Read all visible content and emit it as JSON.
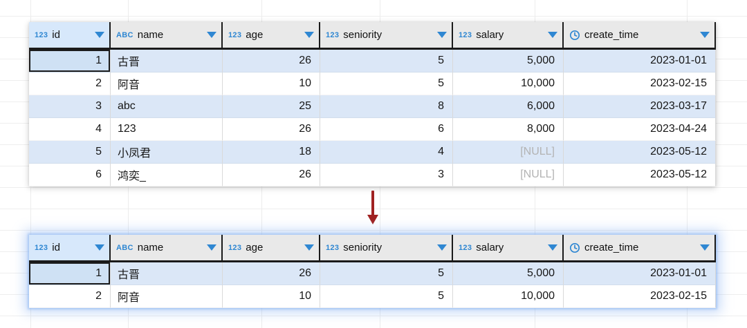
{
  "columns": [
    {
      "key": "id",
      "label": "id",
      "type": "123",
      "icon": "number-type-icon",
      "align": "right"
    },
    {
      "key": "name",
      "label": "name",
      "type": "ABC",
      "icon": "text-type-icon",
      "align": "left"
    },
    {
      "key": "age",
      "label": "age",
      "type": "123",
      "icon": "number-type-icon",
      "align": "right"
    },
    {
      "key": "seniority",
      "label": "seniority",
      "type": "123",
      "icon": "number-type-icon",
      "align": "right"
    },
    {
      "key": "salary",
      "label": "salary",
      "type": "123",
      "icon": "number-type-icon",
      "align": "right"
    },
    {
      "key": "create_time",
      "label": "create_time",
      "type": "",
      "icon": "datetime-type-icon",
      "align": "right"
    }
  ],
  "top_table": {
    "rows": [
      [
        "1",
        "古晋",
        "26",
        "5",
        "5,000",
        "2023-01-01"
      ],
      [
        "2",
        "阿音",
        "10",
        "5",
        "10,000",
        "2023-02-15"
      ],
      [
        "3",
        "abc",
        "25",
        "8",
        "6,000",
        "2023-03-17"
      ],
      [
        "4",
        "123",
        "26",
        "6",
        "8,000",
        "2023-04-24"
      ],
      [
        "5",
        "小凤君",
        "18",
        "4",
        "[NULL]",
        "2023-05-12"
      ],
      [
        "6",
        "鸿奕_",
        "26",
        "3",
        "[NULL]",
        "2023-05-12"
      ]
    ],
    "selected_cell": {
      "row": 0,
      "col": 0
    }
  },
  "bottom_table": {
    "rows": [
      [
        "1",
        "古晋",
        "26",
        "5",
        "5,000",
        "2023-01-01"
      ],
      [
        "2",
        "阿音",
        "10",
        "5",
        "10,000",
        "2023-02-15"
      ]
    ],
    "selected_cell": {
      "row": 0,
      "col": 0
    }
  },
  "null_text": "[NULL]",
  "colors": {
    "type_icon_blue": "#2f87d2",
    "caret_blue": "#2f87d2",
    "header_bg": "#e9e9e9",
    "selected_column_header_bg": "#d7e8fb",
    "zebra_row_blue": "#dbe7f7",
    "selected_cell_bg": "#cfe1f4",
    "null_gray": "#b3b3b3",
    "arrow_red": "#a02222",
    "focus_glow_blue": "#9cc0f0"
  }
}
